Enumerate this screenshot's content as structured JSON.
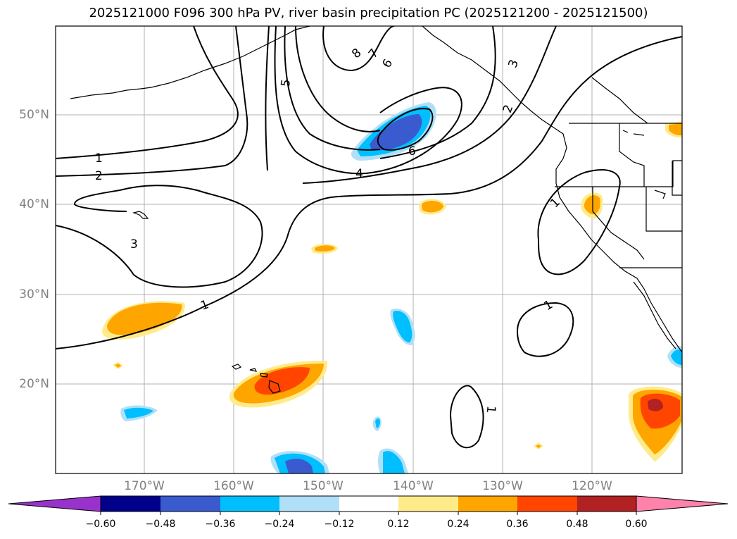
{
  "title": "2025121000 F096 300 hPa PV, river basin precipitation PC (2025121200 - 2025121500)",
  "lat_labels": [
    "50°N",
    "40°N",
    "30°N",
    "20°N"
  ],
  "lon_labels": [
    "170°W",
    "160°W",
    "150°W",
    "140°W",
    "130°W",
    "120°W"
  ],
  "contour_labels": [
    "1",
    "2",
    "3",
    "4",
    "5",
    "6",
    "7",
    "8",
    "1",
    "6",
    "3",
    "2",
    "1",
    "1",
    "1"
  ],
  "colorbar": {
    "ticks": [
      "−0.60",
      "−0.48",
      "−0.36",
      "−0.24",
      "−0.12",
      "0.12",
      "0.24",
      "0.36",
      "0.48",
      "0.60"
    ],
    "colors": [
      "#9932cc",
      "#00008b",
      "#3a5bd0",
      "#00bfff",
      "#b0e0f8",
      "#ffffff",
      "#ffeb8a",
      "#ffa500",
      "#ff4500",
      "#b22222",
      "#ff82ab"
    ]
  }
}
